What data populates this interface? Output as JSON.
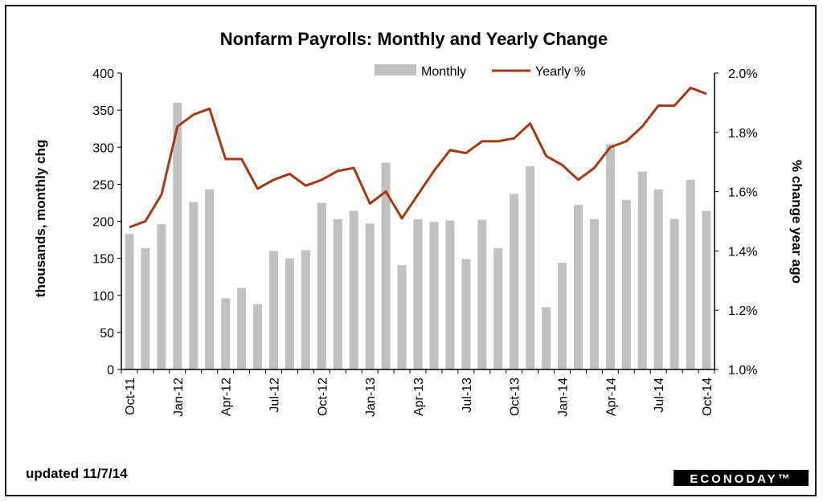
{
  "chart_data": {
    "type": "bar",
    "title": "Nonfarm Payrolls: Monthly and Yearly Change",
    "ylabel_left": "thousands, monthly chg",
    "ylabel_right": "% change year ago",
    "ylim_left": [
      0,
      400
    ],
    "ylim_right": [
      1.0,
      2.0
    ],
    "yticks_left": [
      "0",
      "50",
      "100",
      "150",
      "200",
      "250",
      "300",
      "350",
      "400"
    ],
    "yticks_right": [
      "1.0%",
      "1.2%",
      "1.4%",
      "1.6%",
      "1.8%",
      "2.0%"
    ],
    "x_tick_labels": [
      "Oct-11",
      "Jan-12",
      "Apr-12",
      "Jul-12",
      "Oct-12",
      "Jan-13",
      "Apr-13",
      "Jul-13",
      "Oct-13",
      "Jan-14",
      "Apr-14",
      "Jul-14",
      "Oct-14"
    ],
    "legend_position": "top",
    "categories": [
      "Oct-11",
      "Nov-11",
      "Dec-11",
      "Jan-12",
      "Feb-12",
      "Mar-12",
      "Apr-12",
      "May-12",
      "Jun-12",
      "Jul-12",
      "Aug-12",
      "Sep-12",
      "Oct-12",
      "Nov-12",
      "Dec-12",
      "Jan-13",
      "Feb-13",
      "Mar-13",
      "Apr-13",
      "May-13",
      "Jun-13",
      "Jul-13",
      "Aug-13",
      "Sep-13",
      "Oct-13",
      "Nov-13",
      "Dec-13",
      "Jan-14",
      "Feb-14",
      "Mar-14",
      "Apr-14",
      "May-14",
      "Jun-14",
      "Jul-14",
      "Aug-14",
      "Sep-14",
      "Oct-14"
    ],
    "series": [
      {
        "name": "Monthly",
        "type": "bar",
        "axis": "left",
        "color": "#c0c0c0",
        "values": [
          183,
          164,
          196,
          360,
          226,
          243,
          96,
          110,
          88,
          160,
          150,
          161,
          225,
          203,
          214,
          197,
          279,
          141,
          203,
          199,
          201,
          149,
          202,
          164,
          237,
          274,
          84,
          144,
          222,
          203,
          304,
          229,
          267,
          243,
          203,
          256,
          214
        ]
      },
      {
        "name": "Yearly %",
        "type": "line",
        "axis": "right",
        "color": "#a23a16",
        "values": [
          1.48,
          1.5,
          1.59,
          1.82,
          1.86,
          1.88,
          1.71,
          1.71,
          1.61,
          1.64,
          1.66,
          1.62,
          1.64,
          1.67,
          1.68,
          1.56,
          1.6,
          1.51,
          1.59,
          1.67,
          1.74,
          1.73,
          1.77,
          1.77,
          1.78,
          1.83,
          1.72,
          1.69,
          1.64,
          1.68,
          1.75,
          1.77,
          1.82,
          1.89,
          1.89,
          1.95,
          1.93
        ]
      }
    ]
  },
  "footer": {
    "updated": "updated 11/7/14",
    "logo": "ECONODAY™"
  }
}
